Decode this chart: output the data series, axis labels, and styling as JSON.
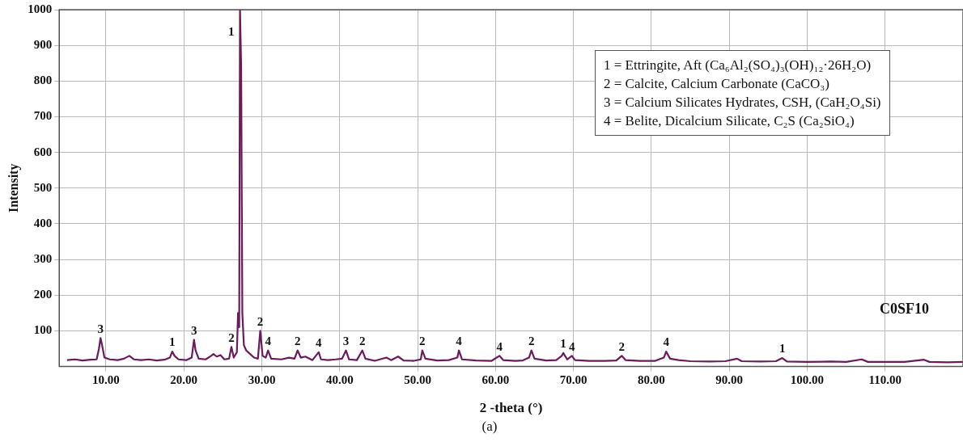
{
  "chart_data": {
    "type": "line",
    "xlabel": "2 -theta (°)",
    "ylabel": "Intensity",
    "x": [
      5,
      6,
      7,
      8,
      8.8,
      9.1,
      9.3,
      9.5,
      9.8,
      10.5,
      11.5,
      12.3,
      13,
      13.6,
      14.5,
      15.5,
      16.5,
      17.5,
      18.2,
      18.5,
      18.8,
      19.3,
      20.3,
      21,
      21.3,
      21.5,
      21.9,
      22.8,
      23.5,
      23.8,
      24.2,
      24.7,
      25.2,
      25.8,
      26.1,
      26.4,
      26.8,
      26.95,
      27.1,
      27.2,
      27.35,
      27.5,
      27.7,
      28,
      28.5,
      29,
      29.5,
      29.8,
      30.1,
      30.5,
      30.8,
      31.2,
      32.5,
      33.5,
      34.2,
      34.6,
      35,
      35.6,
      36.5,
      37.3,
      37.6,
      38.5,
      39.5,
      40.3,
      40.8,
      41.2,
      42.2,
      42.9,
      43.3,
      44.5,
      46,
      46.6,
      47.5,
      48.2,
      49.5,
      50.4,
      50.6,
      51,
      52.5,
      54,
      55.1,
      55.3,
      55.7,
      57.5,
      59.5,
      60.5,
      61,
      62.5,
      63.5,
      64.3,
      64.6,
      65,
      66.5,
      67.8,
      68.5,
      68.7,
      69.2,
      69.8,
      70.2,
      72,
      74,
      75.5,
      76.2,
      76.7,
      78.5,
      80.5,
      81.6,
      81.9,
      82.4,
      83.5,
      85,
      87.5,
      89.5,
      91,
      91.6,
      94,
      96,
      96.8,
      97.4,
      100,
      103,
      105,
      107,
      107.8,
      110,
      112.5,
      115,
      115.7,
      118,
      120
    ],
    "series": [
      {
        "color": "#6b1a5c",
        "values": [
          18,
          20,
          17,
          19,
          20,
          50,
          80,
          60,
          25,
          20,
          18,
          22,
          30,
          20,
          18,
          20,
          17,
          19,
          25,
          42,
          30,
          20,
          18,
          25,
          75,
          45,
          22,
          20,
          30,
          35,
          28,
          32,
          20,
          22,
          55,
          25,
          40,
          150,
          110,
          1000,
          840,
          150,
          60,
          45,
          35,
          25,
          22,
          100,
          30,
          25,
          45,
          22,
          20,
          25,
          22,
          45,
          25,
          28,
          18,
          40,
          20,
          18,
          20,
          22,
          45,
          20,
          18,
          45,
          22,
          16,
          25,
          18,
          28,
          17,
          16,
          20,
          45,
          22,
          17,
          18,
          25,
          45,
          20,
          17,
          16,
          30,
          18,
          16,
          17,
          25,
          45,
          22,
          17,
          18,
          30,
          38,
          20,
          30,
          18,
          16,
          16,
          17,
          30,
          18,
          16,
          16,
          25,
          42,
          22,
          18,
          15,
          14,
          15,
          22,
          15,
          14,
          15,
          24,
          14,
          13,
          14,
          13,
          20,
          13,
          13,
          13,
          19,
          13,
          12,
          13
        ]
      }
    ],
    "xlim": [
      4,
      120
    ],
    "xticks": [
      {
        "value": 10,
        "label": "10.00"
      },
      {
        "value": 20,
        "label": "20.00"
      },
      {
        "value": 30,
        "label": "30.00"
      },
      {
        "value": 40,
        "label": "40.00"
      },
      {
        "value": 50,
        "label": "50.00"
      },
      {
        "value": 60,
        "label": "60.00"
      },
      {
        "value": 70,
        "label": "70.00"
      },
      {
        "value": 80,
        "label": "80.00"
      },
      {
        "value": 90,
        "label": "90.00"
      },
      {
        "value": 100,
        "label": "100.00"
      },
      {
        "value": 110,
        "label": "110.00"
      }
    ],
    "ylim": [
      0,
      1000
    ],
    "yticks": [
      100,
      200,
      300,
      400,
      500,
      600,
      700,
      800,
      900,
      1000
    ],
    "grid": true,
    "legend": false,
    "marker": "none",
    "line_style": "solid",
    "annotations": [
      "1 = Ettringite, Aft (Ca₆Al₂(SO₄)₃(OH)₁₂·26H₂O)",
      "2 = Calcite, Calcium Carbonate (CaCO₃)",
      "3 = Calcium Silicates Hydrates, CSH, (CaH₂O₄Si)",
      "4 = Belite, Dicalcium Silicate, C₂S (Ca₂SiO₄)",
      "C0SF10",
      "(a)",
      {
        "text": "3",
        "x": 9.3,
        "y": 80
      },
      {
        "text": "1",
        "x": 27.2,
        "y": 1000
      },
      {
        "text": "1",
        "x": 18.5,
        "y": 42
      },
      {
        "text": "3",
        "x": 21.3,
        "y": 75
      },
      {
        "text": "2",
        "x": 26.1,
        "y": 55
      },
      {
        "text": "2",
        "x": 29.8,
        "y": 100
      },
      {
        "text": "4",
        "x": 30.8,
        "y": 45
      },
      {
        "text": "2",
        "x": 34.6,
        "y": 45
      },
      {
        "text": "4",
        "x": 37.3,
        "y": 40
      },
      {
        "text": "3",
        "x": 40.8,
        "y": 45
      },
      {
        "text": "2",
        "x": 42.9,
        "y": 45
      },
      {
        "text": "2",
        "x": 50.6,
        "y": 45
      },
      {
        "text": "4",
        "x": 55.3,
        "y": 45
      },
      {
        "text": "4",
        "x": 60.5,
        "y": 30
      },
      {
        "text": "2",
        "x": 64.6,
        "y": 45
      },
      {
        "text": "1",
        "x": 68.7,
        "y": 38
      },
      {
        "text": "4",
        "x": 69.8,
        "y": 30
      },
      {
        "text": "2",
        "x": 76.2,
        "y": 30
      },
      {
        "text": "4",
        "x": 81.9,
        "y": 42
      },
      {
        "text": "1",
        "x": 96.8,
        "y": 24
      }
    ]
  }
}
